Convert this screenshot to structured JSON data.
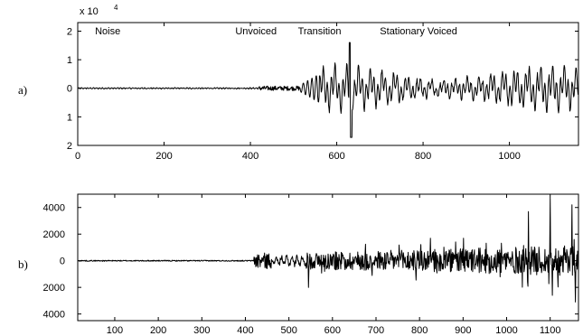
{
  "chart_data": [
    {
      "type": "line",
      "panel_label": "a)",
      "scale_note": {
        "base": "x 10",
        "exponent": "4"
      },
      "x_ticks": [
        0,
        200,
        400,
        600,
        800,
        1000
      ],
      "y_ticks": [
        2,
        1,
        0,
        1,
        2
      ],
      "xlim": [
        0,
        1160
      ],
      "ylim": [
        -2,
        2.3
      ],
      "regions": [
        {
          "label": "Noise",
          "x": 40
        },
        {
          "label": "Unvoiced",
          "x": 365
        },
        {
          "label": "Transition",
          "x": 510
        },
        {
          "label": "Stationary Voiced",
          "x": 700
        }
      ],
      "signal": {
        "noise_end": 420,
        "noise_amp": 0.03,
        "unvoiced_end": 515,
        "unvoiced_amp": 0.08,
        "transition_end": 560,
        "transition_amp": 0.4,
        "peak_x": 632,
        "peak_max": 1.6,
        "peak_min": -1.72,
        "voiced_amp": 0.85,
        "period": 28
      }
    },
    {
      "type": "line",
      "panel_label": "b)",
      "x_ticks": [
        100,
        200,
        300,
        400,
        500,
        600,
        700,
        800,
        900,
        1000,
        1100
      ],
      "y_ticks": [
        4000,
        2000,
        0,
        2000,
        4000
      ],
      "xlim": [
        15,
        1165
      ],
      "ylim": [
        -4500,
        5000
      ],
      "signal": {
        "noise_end": 420,
        "noise_amp": 40,
        "burst_start": 420,
        "burst_end": 460,
        "burst_amp": 600,
        "mid_end": 540,
        "mid_amp": 500,
        "voiced_amp": 1300,
        "spikes": [
          {
            "x": 545,
            "y": -2000
          },
          {
            "x": 1050,
            "y": 3700
          },
          {
            "x": 1100,
            "y": 4700
          },
          {
            "x": 1105,
            "y": -2600
          },
          {
            "x": 1150,
            "y": 4200
          },
          {
            "x": 1158,
            "y": -3100
          }
        ]
      }
    }
  ]
}
